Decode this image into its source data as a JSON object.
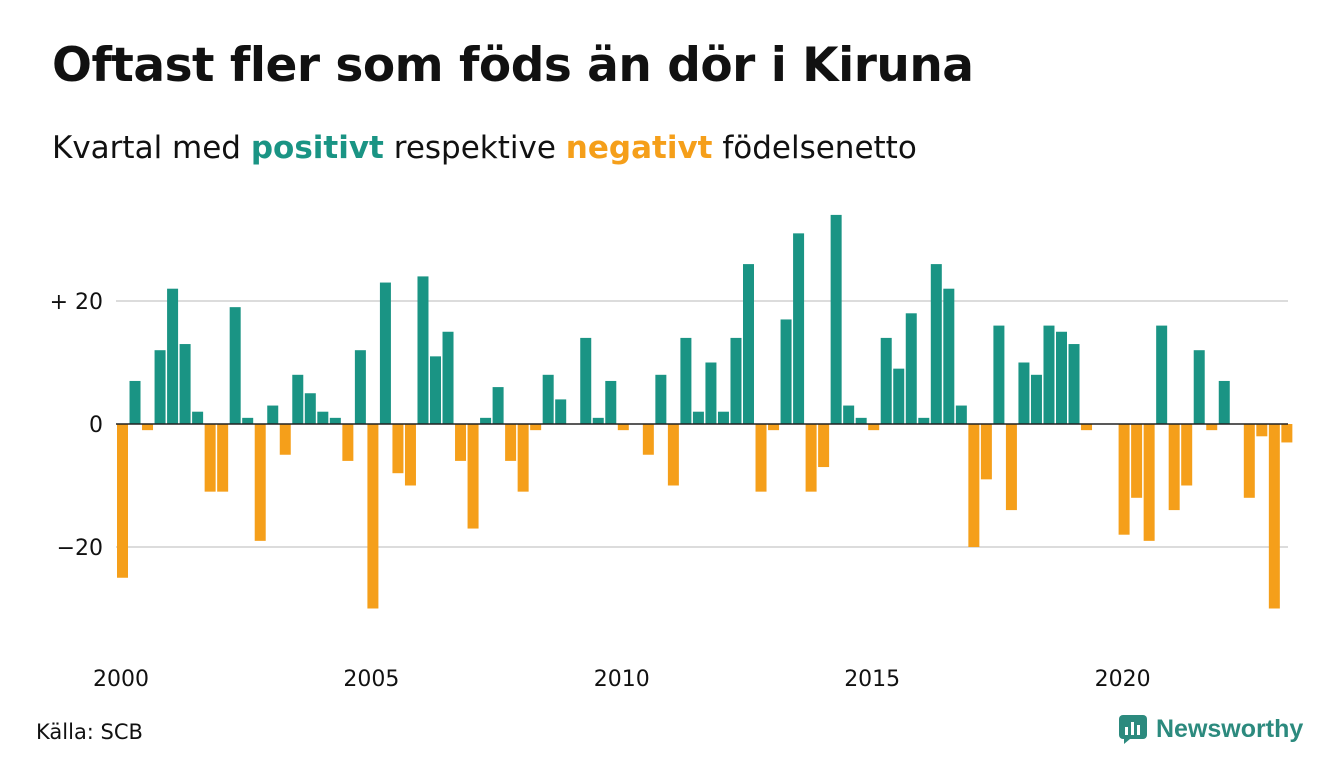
{
  "header": {
    "title": "Oftast fler som föds än dör i Kiruna",
    "subtitle_pre": "Kvartal med",
    "subtitle_pos": "positivt",
    "subtitle_mid": "respektive",
    "subtitle_neg": "negativt",
    "subtitle_post": "födelsenetto"
  },
  "footer": {
    "source": "Källa: SCB",
    "brand": "Newsworthy"
  },
  "colors": {
    "positive": "#1a9484",
    "negative": "#f59f1a",
    "grid": "#dcdcdc",
    "zero": "#222222",
    "brand": "#2c8a7e"
  },
  "chart_data": {
    "type": "bar",
    "xlabel": "",
    "ylabel": "",
    "ylim": [
      -35,
      35
    ],
    "y_ticks": [
      {
        "value": 20,
        "label": "+ 20"
      },
      {
        "value": 0,
        "label": "0"
      },
      {
        "value": -20,
        "label": "−20"
      }
    ],
    "x_ticks": [
      {
        "value": 2000,
        "label": "2000"
      },
      {
        "value": 2005,
        "label": "2005"
      },
      {
        "value": 2010,
        "label": "2010"
      },
      {
        "value": 2015,
        "label": "2015"
      },
      {
        "value": 2020,
        "label": "2020"
      }
    ],
    "grid": true,
    "first_period": "2000 Q1",
    "last_period": "2023 Q2",
    "values": [
      -25,
      7,
      -1,
      12,
      22,
      13,
      2,
      -11,
      -11,
      19,
      1,
      -19,
      3,
      -5,
      8,
      5,
      2,
      1,
      -6,
      12,
      -30,
      23,
      -8,
      -10,
      24,
      11,
      15,
      -6,
      -17,
      1,
      6,
      -6,
      -11,
      -1,
      8,
      4,
      0,
      14,
      1,
      7,
      -1,
      0,
      -5,
      8,
      -10,
      14,
      2,
      10,
      2,
      14,
      26,
      -11,
      -1,
      17,
      31,
      -11,
      -7,
      34,
      3,
      1,
      -1,
      14,
      9,
      18,
      1,
      26,
      22,
      3,
      -20,
      -9,
      16,
      -14,
      10,
      8,
      16,
      15,
      13,
      -1,
      0,
      0,
      -18,
      -12,
      -19,
      16,
      -14,
      -10,
      12,
      -1,
      7,
      0,
      -12,
      -2,
      -30,
      -3
    ]
  }
}
